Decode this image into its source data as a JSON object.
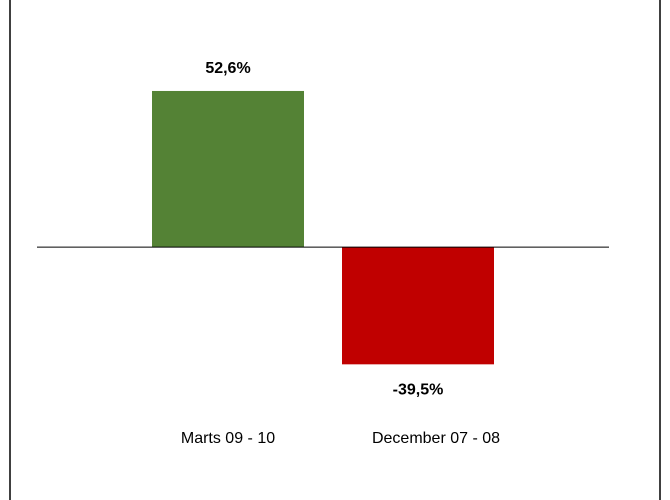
{
  "chart_data": {
    "type": "bar",
    "categories": [
      "Marts 09 - 10",
      "December 07 - 08"
    ],
    "values": [
      52.6,
      -39.5
    ],
    "value_labels": [
      "52,6%",
      "-39,5%"
    ],
    "colors": [
      "#548235",
      "#c00000"
    ],
    "ylim": [
      -50,
      60
    ],
    "grid": false
  }
}
